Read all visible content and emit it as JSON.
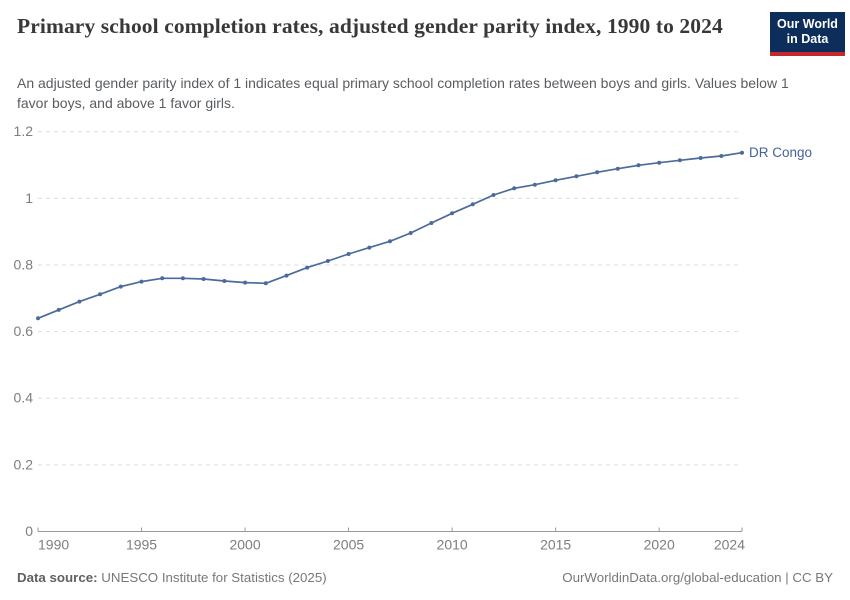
{
  "header": {
    "title": "Primary school completion rates, adjusted gender parity index, 1990 to 2024",
    "subtitle": "An adjusted gender parity index of 1 indicates equal primary school completion rates between boys and girls. Values below 1 favor boys, and above 1 favor girls.",
    "logo": {
      "line1": "Our World",
      "line2": "in Data"
    }
  },
  "chart_data": {
    "type": "line",
    "title": "Primary school completion rates, adjusted gender parity index, 1990 to 2024",
    "xlabel": "",
    "ylabel": "",
    "xlim": [
      1990,
      2024
    ],
    "ylim": [
      0,
      1.2
    ],
    "x_ticks": [
      1990,
      1995,
      2000,
      2005,
      2010,
      2015,
      2020,
      2024
    ],
    "y_ticks": [
      0,
      0.2,
      0.4,
      0.6,
      0.8,
      1,
      1.2
    ],
    "grid": "horizontal-dashed",
    "legend_position": "end-of-line-label",
    "x": [
      1990,
      1991,
      1992,
      1993,
      1994,
      1995,
      1996,
      1997,
      1998,
      1999,
      2000,
      2001,
      2002,
      2003,
      2004,
      2005,
      2006,
      2007,
      2008,
      2009,
      2010,
      2011,
      2012,
      2013,
      2014,
      2015,
      2016,
      2017,
      2018,
      2019,
      2020,
      2021,
      2022,
      2023,
      2024
    ],
    "series": [
      {
        "name": "DR Congo",
        "color": "#4c6a9c",
        "values": [
          0.64,
          0.665,
          0.69,
          0.712,
          0.735,
          0.75,
          0.76,
          0.76,
          0.758,
          0.752,
          0.747,
          0.745,
          0.768,
          0.792,
          0.812,
          0.833,
          0.852,
          0.871,
          0.896,
          0.926,
          0.955,
          0.982,
          1.01,
          1.03,
          1.041,
          1.054,
          1.066,
          1.078,
          1.089,
          1.099,
          1.107,
          1.114,
          1.121,
          1.127,
          1.137
        ]
      }
    ]
  },
  "footer": {
    "data_source_label": "Data source:",
    "data_source_value": " UNESCO Institute for Statistics (2025)",
    "attribution": "OurWorldinData.org/global-education | CC BY"
  },
  "colors": {
    "line": "#4c6a9c",
    "entity_label": "#45619d",
    "grid": "#dddddd",
    "axis": "#9a9a9a",
    "tick_text": "#7e7e7e",
    "logo_navy": "#0d2e5a",
    "logo_red": "#c5292e"
  }
}
